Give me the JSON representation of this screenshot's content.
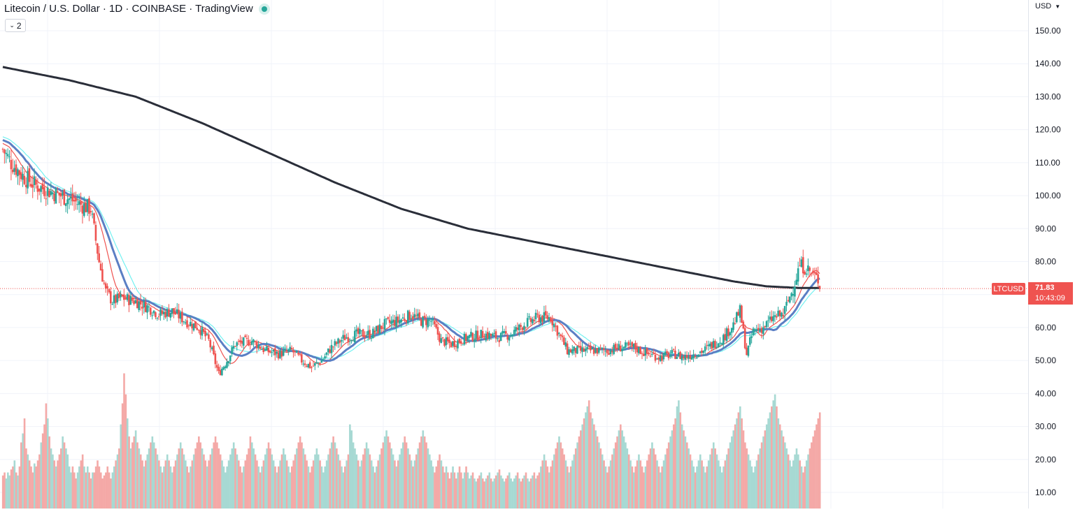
{
  "header": {
    "title": "Litecoin / U.S. Dollar · 1D · COINBASE · TradingView",
    "indicators_count": "2"
  },
  "price_axis": {
    "currency_label": "USD",
    "symbol_tag": "LTCUSD",
    "last_price": "71.83",
    "countdown": "10:43:09"
  },
  "colors": {
    "up": "#26a69a",
    "down": "#ef5350",
    "volume_up": "#a7d9d3",
    "volume_down": "#f4a9a7",
    "ma_short": "#ef5350",
    "ma_cyan": "#73f1f1",
    "ma_blue": "#5b7fc4",
    "ma_long": "#2a2e39"
  },
  "chart_data": {
    "type": "candlestick",
    "title": "",
    "ylim": [
      7,
      158
    ],
    "yticks": [
      10,
      20,
      30,
      40,
      50,
      60,
      70,
      80,
      90,
      100,
      110,
      120,
      130,
      140,
      150
    ],
    "ytick_labels": [
      "10.00",
      "20.00",
      "30.00",
      "40.00",
      "50.00",
      "60.00",
      "70.00",
      "80.00",
      "90.00",
      "100.00",
      "110.00",
      "120.00",
      "130.00",
      "140.00",
      "150.00"
    ],
    "grid": true,
    "last_price": 71.83,
    "price_path": [
      [
        0,
        114
      ],
      [
        5,
        110
      ],
      [
        12,
        106
      ],
      [
        20,
        103
      ],
      [
        30,
        101
      ],
      [
        40,
        99
      ],
      [
        48,
        97
      ],
      [
        53,
        96
      ],
      [
        58,
        80
      ],
      [
        62,
        71
      ],
      [
        66,
        68
      ],
      [
        72,
        69
      ],
      [
        80,
        68
      ],
      [
        88,
        66
      ],
      [
        94,
        64
      ],
      [
        102,
        65
      ],
      [
        110,
        62
      ],
      [
        118,
        60
      ],
      [
        124,
        56
      ],
      [
        130,
        46
      ],
      [
        135,
        50
      ],
      [
        140,
        55
      ],
      [
        150,
        56
      ],
      [
        158,
        53
      ],
      [
        166,
        52
      ],
      [
        174,
        53
      ],
      [
        180,
        50
      ],
      [
        186,
        48
      ],
      [
        192,
        50
      ],
      [
        198,
        54
      ],
      [
        206,
        57
      ],
      [
        214,
        58
      ],
      [
        222,
        58
      ],
      [
        230,
        61
      ],
      [
        238,
        62
      ],
      [
        246,
        64
      ],
      [
        252,
        62
      ],
      [
        258,
        62
      ],
      [
        264,
        56
      ],
      [
        270,
        55
      ],
      [
        280,
        57
      ],
      [
        290,
        58
      ],
      [
        298,
        57
      ],
      [
        306,
        58
      ],
      [
        314,
        61
      ],
      [
        322,
        63
      ],
      [
        330,
        63
      ],
      [
        336,
        57
      ],
      [
        340,
        53
      ],
      [
        348,
        53
      ],
      [
        356,
        53
      ],
      [
        364,
        53
      ],
      [
        372,
        54
      ],
      [
        380,
        54
      ],
      [
        388,
        52
      ],
      [
        396,
        51
      ],
      [
        404,
        52
      ],
      [
        410,
        51
      ],
      [
        416,
        52
      ],
      [
        422,
        53
      ],
      [
        428,
        55
      ],
      [
        434,
        57
      ],
      [
        440,
        61
      ],
      [
        444,
        65
      ],
      [
        448,
        52
      ],
      [
        452,
        59
      ],
      [
        458,
        60
      ],
      [
        464,
        63
      ],
      [
        470,
        64
      ],
      [
        476,
        72
      ],
      [
        480,
        79
      ],
      [
        484,
        78
      ],
      [
        488,
        76
      ],
      [
        492,
        74
      ]
    ],
    "volume": [
      11,
      12,
      10,
      12,
      11,
      13,
      14,
      16,
      12,
      11,
      14,
      22,
      25,
      30,
      20,
      18,
      16,
      14,
      12,
      15,
      14,
      16,
      18,
      22,
      25,
      28,
      35,
      30,
      24,
      20,
      18,
      16,
      14,
      16,
      18,
      20,
      24,
      22,
      20,
      18,
      14,
      12,
      14,
      12,
      10,
      12,
      14,
      16,
      18,
      14,
      12,
      14,
      12,
      10,
      12,
      12,
      14,
      16,
      14,
      12,
      10,
      11,
      12,
      14,
      12,
      10,
      12,
      14,
      16,
      18,
      20,
      28,
      35,
      45,
      38,
      30,
      24,
      20,
      22,
      24,
      26,
      22,
      20,
      18,
      16,
      14,
      16,
      18,
      20,
      22,
      24,
      22,
      20,
      18,
      16,
      14,
      12,
      14,
      16,
      18,
      16,
      14,
      12,
      14,
      16,
      18,
      20,
      22,
      20,
      18,
      16,
      14,
      12,
      14,
      16,
      18,
      20,
      22,
      24,
      22,
      20,
      18,
      16,
      14,
      16,
      18,
      20,
      22,
      24,
      22,
      20,
      18,
      16,
      14,
      12,
      14,
      16,
      18,
      20,
      22,
      20,
      18,
      16,
      14,
      12,
      14,
      16,
      18,
      20,
      24,
      22,
      20,
      18,
      16,
      14,
      12,
      14,
      16,
      18,
      20,
      22,
      20,
      18,
      16,
      14,
      12,
      14,
      16,
      18,
      20,
      18,
      16,
      14,
      12,
      14,
      16,
      18,
      20,
      22,
      24,
      22,
      20,
      18,
      16,
      14,
      12,
      14,
      16,
      18,
      20,
      18,
      16,
      14,
      12,
      14,
      16,
      18,
      20,
      22,
      24,
      22,
      20,
      18,
      16,
      14,
      12,
      14,
      16,
      18,
      28,
      26,
      22,
      20,
      18,
      16,
      14,
      16,
      18,
      20,
      22,
      20,
      18,
      16,
      14,
      12,
      14,
      16,
      18,
      20,
      22,
      24,
      26,
      24,
      22,
      20,
      18,
      16,
      14,
      16,
      18,
      20,
      22,
      24,
      22,
      20,
      18,
      16,
      14,
      16,
      18,
      20,
      22,
      24,
      26,
      24,
      22,
      20,
      18,
      16,
      14,
      12,
      14,
      16,
      18,
      16,
      14,
      12,
      14,
      12,
      10,
      12,
      14,
      12,
      10,
      12,
      14,
      12,
      10,
      12,
      14,
      12,
      10,
      11,
      12,
      10,
      9,
      10,
      11,
      12,
      10,
      9,
      10,
      11,
      12,
      10,
      9,
      10,
      11,
      12,
      13,
      11,
      10,
      9,
      10,
      11,
      12,
      10,
      9,
      10,
      11,
      12,
      10,
      9,
      10,
      11,
      12,
      10,
      9,
      10,
      11,
      12,
      10,
      11,
      12,
      14,
      16,
      18,
      16,
      14,
      12,
      14,
      16,
      18,
      20,
      22,
      24,
      22,
      20,
      18,
      16,
      14,
      12,
      14,
      16,
      18,
      20,
      22,
      24,
      26,
      28,
      30,
      32,
      34,
      36,
      32,
      30,
      28,
      26,
      24,
      22,
      20,
      18,
      16,
      14,
      12,
      14,
      16,
      18,
      20,
      22,
      24,
      26,
      28,
      26,
      24,
      22,
      20,
      18,
      16,
      14,
      12,
      14,
      16,
      18,
      16,
      14,
      12,
      14,
      16,
      18,
      20,
      22,
      20,
      18,
      16,
      14,
      12,
      14,
      16,
      18,
      20,
      22,
      24,
      26,
      28,
      30,
      34,
      36,
      32,
      28,
      26,
      24,
      22,
      20,
      18,
      16,
      14,
      12,
      14,
      16,
      18,
      16,
      14,
      12,
      14,
      16,
      18,
      20,
      22,
      20,
      18,
      16,
      14,
      12,
      14,
      16,
      18,
      20,
      22,
      24,
      26,
      28,
      30,
      32,
      34,
      30,
      26,
      22,
      20,
      18,
      16,
      14,
      12,
      14,
      16,
      18,
      20,
      22,
      24,
      26,
      28,
      30,
      32,
      34,
      36,
      38,
      34,
      30,
      28,
      26,
      24,
      22,
      20,
      18,
      16,
      14,
      16,
      18,
      20,
      18,
      16,
      14,
      12,
      14,
      16,
      18,
      20,
      22,
      24,
      26,
      28,
      30,
      32,
      34,
      36,
      38,
      40,
      36,
      32,
      28,
      24,
      20,
      18,
      16,
      14,
      16,
      18,
      16,
      14,
      12,
      14,
      16
    ],
    "moving_averages": [
      {
        "color": "#ef5350",
        "period": 12
      },
      {
        "color": "#73f1f1",
        "period": 26
      },
      {
        "color": "#5b7fc4",
        "period": 20
      },
      {
        "color": "#2a2e39",
        "period": 200
      }
    ],
    "ma_long_path": [
      [
        0,
        139
      ],
      [
        40,
        135
      ],
      [
        80,
        130
      ],
      [
        120,
        122
      ],
      [
        160,
        113
      ],
      [
        200,
        104
      ],
      [
        240,
        96
      ],
      [
        280,
        90
      ],
      [
        320,
        86
      ],
      [
        360,
        82
      ],
      [
        400,
        78
      ],
      [
        420,
        76
      ],
      [
        440,
        74
      ],
      [
        460,
        72.5
      ],
      [
        480,
        72
      ],
      [
        492,
        72
      ]
    ]
  }
}
